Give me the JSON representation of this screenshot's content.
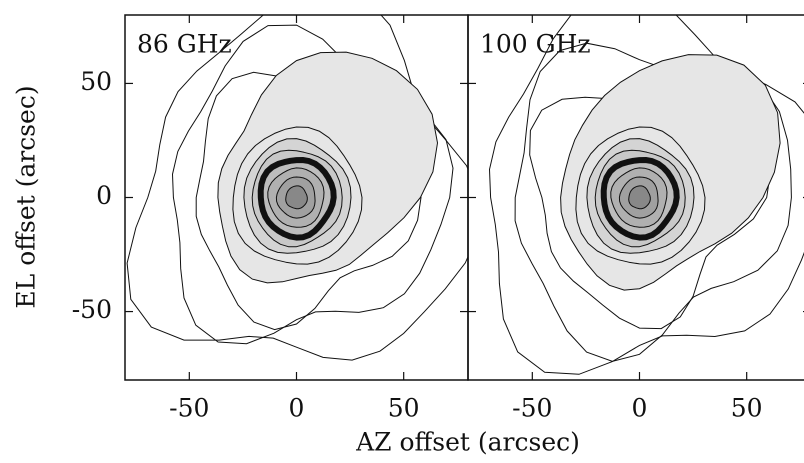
{
  "chart_data": [
    {
      "type": "contour",
      "title": "86 GHz",
      "xlabel": "AZ offset (arcsec)",
      "ylabel": "EL offset (arcsec)",
      "xlim": [
        -80,
        80
      ],
      "xticks": [
        -50,
        0,
        50
      ],
      "ylim": [
        -80,
        80
      ],
      "yticks": [
        -50,
        0,
        50
      ],
      "ytick_labels": true
    },
    {
      "type": "contour",
      "title": "100 GHz",
      "xlim": [
        -80,
        80
      ],
      "xticks": [
        -50,
        0,
        50
      ],
      "ylim": [
        -80,
        80
      ],
      "yticks": [
        -50,
        0,
        50
      ],
      "ytick_labels": false
    }
  ]
}
